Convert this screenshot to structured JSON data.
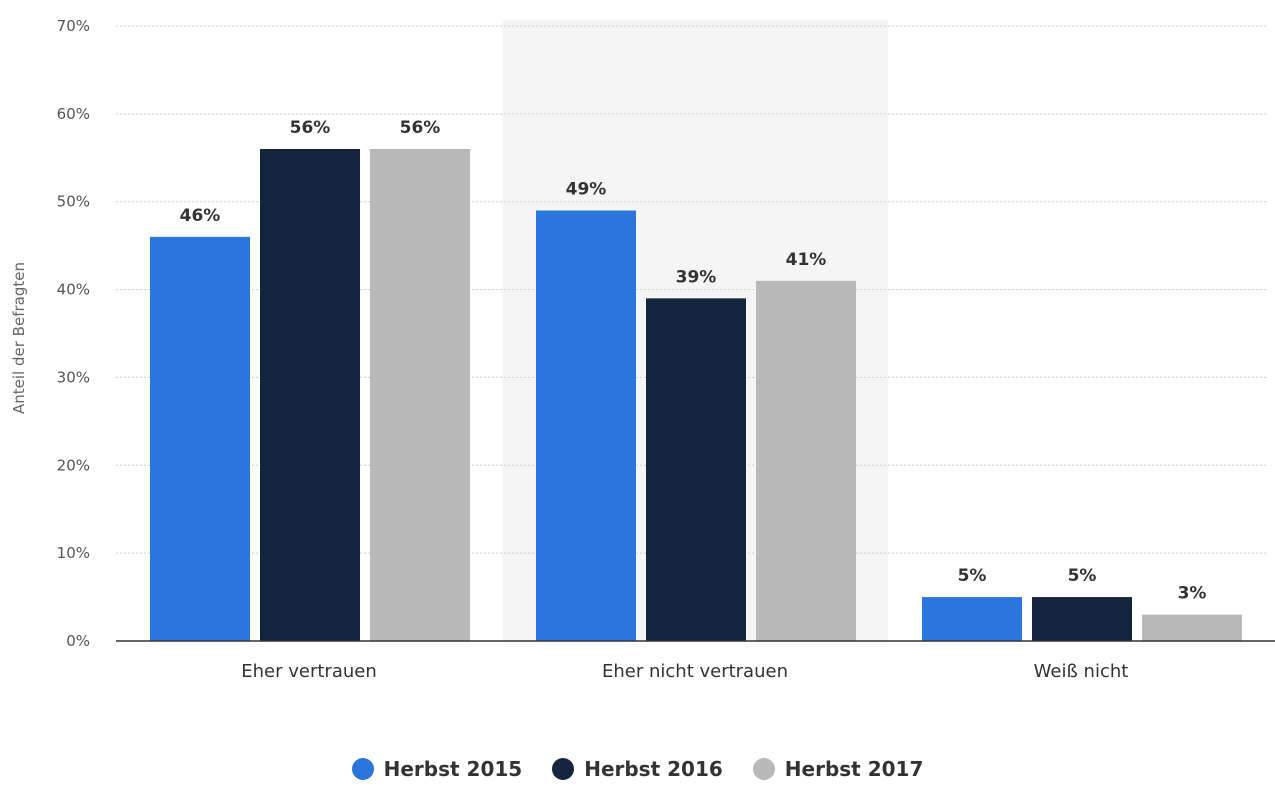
{
  "chart_data": {
    "type": "bar",
    "categories": [
      "Eher vertrauen",
      "Eher nicht vertrauen",
      "Weiß nicht"
    ],
    "series": [
      {
        "name": "Herbst 2015",
        "values": [
          46,
          49,
          5
        ],
        "color": "#2a76dc"
      },
      {
        "name": "Herbst 2016",
        "values": [
          56,
          39,
          5
        ],
        "color": "#13263d"
      },
      {
        "name": "Herbst 2017",
        "values": [
          56,
          41,
          3
        ],
        "color": "#b9b9b9"
      }
    ],
    "value_labels": [
      [
        "46%",
        "49%",
        "5%"
      ],
      [
        "56%",
        "39%",
        "5%"
      ],
      [
        "56%",
        "41%",
        "3%"
      ]
    ],
    "ylabel": "Anteil der Befragten",
    "xlabel": "",
    "title": "",
    "ylim": [
      0,
      70
    ],
    "yticks": [
      0,
      10,
      20,
      30,
      40,
      50,
      60,
      70
    ],
    "ytick_labels": [
      "0%",
      "10%",
      "20%",
      "30%",
      "40%",
      "50%",
      "60%",
      "70%"
    ],
    "grid": true,
    "highlighted_category": "Eher nicht vertrauen",
    "legend_position": "bottom-center"
  },
  "legend": {
    "items": [
      {
        "label": "Herbst 2015",
        "color": "#2a76dc"
      },
      {
        "label": "Herbst 2016",
        "color": "#13263d"
      },
      {
        "label": "Herbst 2017",
        "color": "#b9b9b9"
      }
    ]
  }
}
